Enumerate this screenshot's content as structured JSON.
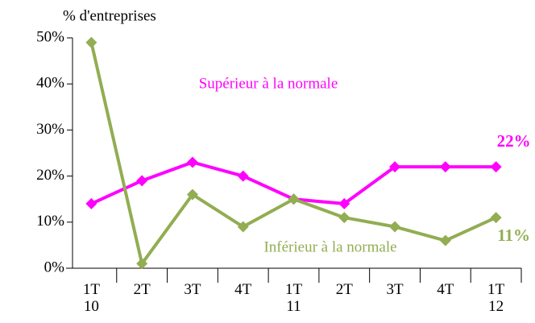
{
  "chart_data": {
    "type": "line",
    "y_label": "% d'entreprises",
    "categories": [
      "1T 10",
      "2T",
      "3T",
      "4T",
      "1T 11",
      "2T",
      "3T",
      "4T",
      "1T 12"
    ],
    "series": [
      {
        "name": "Supérieur à la normale",
        "color": "#ff00ff",
        "values": [
          14,
          19,
          23,
          20,
          15,
          14,
          22,
          22,
          22
        ],
        "value_labels": [
          null,
          null,
          null,
          null,
          null,
          null,
          null,
          null,
          "22%"
        ]
      },
      {
        "name": "Inférieur à la normale",
        "color": "#92ad52",
        "values": [
          49,
          1,
          16,
          9,
          15,
          11,
          9,
          6,
          11
        ],
        "value_labels": [
          null,
          null,
          null,
          null,
          null,
          null,
          null,
          null,
          "11%"
        ]
      }
    ],
    "ylim": [
      0,
      50
    ],
    "yticks": [
      {
        "value": 0,
        "label": "0%"
      },
      {
        "value": 10,
        "label": "10%"
      },
      {
        "value": 20,
        "label": "20%"
      },
      {
        "value": 30,
        "label": "30%"
      },
      {
        "value": 40,
        "label": "40%"
      },
      {
        "value": 50,
        "label": "50%"
      }
    ],
    "grid": false
  }
}
